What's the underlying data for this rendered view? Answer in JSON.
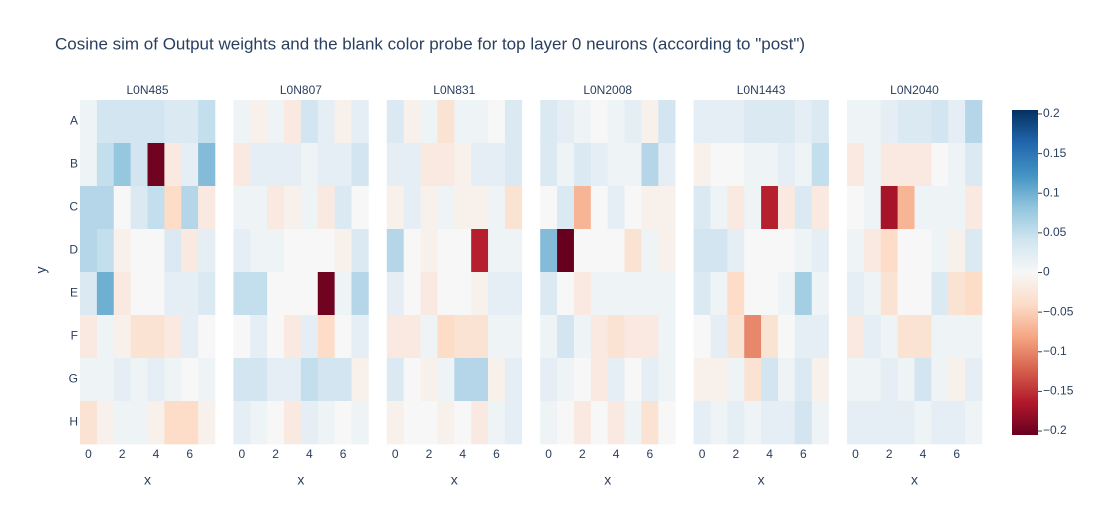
{
  "chart_data": {
    "type": "heatmap",
    "title": "Cosine sim of Output weights and the blank color probe for top layer 0 neurons (according to \"post\")",
    "x_label": "x",
    "y_label": "y",
    "xlim": [
      -0.5,
      7.5
    ],
    "xticks": [
      0,
      2,
      4,
      6
    ],
    "y_categories": [
      "A",
      "B",
      "C",
      "D",
      "E",
      "F",
      "G",
      "H"
    ],
    "zlim": [
      -0.205,
      0.205
    ],
    "colorscale": [
      "#67001f",
      "#b2182b",
      "#d6604d",
      "#f4a582",
      "#fddbc7",
      "#f7f7f7",
      "#d1e5f0",
      "#92c5de",
      "#4393c3",
      "#2166ac",
      "#053061"
    ],
    "colorbar_ticks": [
      0.2,
      0.15,
      0.1,
      0.05,
      0,
      {
        "value": -0.05,
        "label": "−0.05"
      },
      {
        "value": -0.1,
        "label": "−0.1"
      },
      {
        "value": -0.15,
        "label": "−0.15"
      },
      {
        "value": -0.2,
        "label": "−0.2"
      }
    ],
    "panels": [
      {
        "subtitle": "L0N485",
        "values": [
          [
            0.01,
            0.04,
            0.04,
            0.04,
            0.04,
            0.03,
            0.03,
            0.05
          ],
          [
            0.01,
            0.05,
            0.08,
            0.04,
            -0.2,
            -0.02,
            0.02,
            0.09
          ],
          [
            0.06,
            0.06,
            0.0,
            0.03,
            0.05,
            -0.04,
            0.06,
            -0.02
          ],
          [
            0.06,
            0.05,
            -0.01,
            0.0,
            0.0,
            0.03,
            -0.02,
            0.02
          ],
          [
            0.03,
            0.1,
            -0.02,
            0.0,
            0.0,
            0.02,
            0.02,
            0.03
          ],
          [
            -0.02,
            0.01,
            -0.01,
            -0.03,
            -0.03,
            -0.02,
            0.02,
            0.0
          ],
          [
            0.01,
            0.01,
            0.02,
            0.01,
            0.02,
            0.01,
            0.0,
            0.01
          ],
          [
            -0.03,
            -0.01,
            0.01,
            0.01,
            -0.01,
            -0.04,
            -0.04,
            -0.01
          ]
        ]
      },
      {
        "subtitle": "L0N807",
        "values": [
          [
            0.01,
            -0.01,
            0.01,
            -0.02,
            0.04,
            0.02,
            -0.01,
            0.02
          ],
          [
            -0.02,
            0.02,
            0.02,
            0.02,
            0.01,
            0.02,
            0.02,
            0.04
          ],
          [
            0.01,
            0.01,
            -0.02,
            -0.01,
            0.01,
            -0.02,
            0.03,
            0.0
          ],
          [
            0.02,
            0.01,
            0.01,
            0.0,
            0.0,
            0.0,
            -0.01,
            0.03
          ],
          [
            0.05,
            0.05,
            0.0,
            0.0,
            0.0,
            -0.2,
            0.01,
            0.06
          ],
          [
            0.0,
            0.02,
            0.0,
            -0.02,
            0.02,
            -0.04,
            0.0,
            0.02
          ],
          [
            0.04,
            0.04,
            0.02,
            0.02,
            0.05,
            0.04,
            0.04,
            -0.01
          ],
          [
            0.02,
            0.01,
            0.0,
            -0.02,
            0.02,
            0.01,
            0.0,
            0.01
          ]
        ]
      },
      {
        "subtitle": "L0N831",
        "values": [
          [
            0.03,
            -0.01,
            0.01,
            -0.03,
            0.01,
            0.01,
            0.0,
            0.03
          ],
          [
            0.02,
            0.02,
            -0.02,
            -0.02,
            -0.01,
            0.02,
            0.02,
            0.03
          ],
          [
            -0.01,
            0.02,
            -0.01,
            0.01,
            -0.01,
            -0.01,
            0.01,
            -0.03
          ],
          [
            0.06,
            0.0,
            -0.01,
            0.0,
            0.0,
            -0.16,
            0.01,
            0.01
          ],
          [
            0.02,
            0.0,
            -0.02,
            0.0,
            0.0,
            -0.01,
            0.02,
            0.02
          ],
          [
            -0.02,
            -0.02,
            0.01,
            -0.04,
            -0.03,
            -0.03,
            0.01,
            0.01
          ],
          [
            0.03,
            0.0,
            -0.01,
            0.01,
            0.06,
            0.06,
            -0.01,
            0.02
          ],
          [
            -0.01,
            0.0,
            0.0,
            -0.01,
            0.0,
            -0.02,
            0.01,
            0.02
          ]
        ]
      },
      {
        "subtitle": "L0N2008",
        "values": [
          [
            0.03,
            0.02,
            0.01,
            0.0,
            0.01,
            0.02,
            -0.01,
            0.04
          ],
          [
            0.03,
            0.01,
            0.03,
            0.02,
            0.01,
            0.01,
            0.06,
            0.02
          ],
          [
            0.0,
            0.03,
            -0.07,
            0.0,
            0.02,
            0.0,
            -0.01,
            -0.01
          ],
          [
            0.09,
            -0.21,
            0.0,
            0.0,
            0.0,
            -0.03,
            0.01,
            -0.01
          ],
          [
            0.03,
            0.0,
            -0.02,
            0.01,
            0.01,
            0.01,
            0.01,
            0.01
          ],
          [
            0.01,
            0.04,
            0.01,
            -0.02,
            -0.03,
            -0.02,
            -0.02,
            0.01
          ],
          [
            0.02,
            0.01,
            0.0,
            -0.02,
            0.02,
            0.0,
            0.02,
            0.01
          ],
          [
            0.01,
            0.0,
            -0.02,
            0.0,
            -0.02,
            0.01,
            -0.03,
            0.0
          ]
        ]
      },
      {
        "subtitle": "L0N1443",
        "values": [
          [
            0.02,
            0.02,
            0.02,
            0.03,
            0.03,
            0.03,
            0.02,
            0.03
          ],
          [
            -0.01,
            0.0,
            0.0,
            0.01,
            0.01,
            0.02,
            0.01,
            0.05
          ],
          [
            0.03,
            0.01,
            -0.02,
            0.01,
            -0.16,
            -0.02,
            0.03,
            -0.02
          ],
          [
            0.04,
            0.04,
            0.02,
            0.0,
            0.0,
            0.0,
            0.01,
            0.02
          ],
          [
            0.03,
            0.01,
            -0.04,
            0.0,
            0.0,
            0.01,
            0.07,
            0.01
          ],
          [
            0.0,
            0.02,
            -0.03,
            -0.1,
            -0.03,
            0.0,
            0.02,
            0.02
          ],
          [
            -0.01,
            -0.01,
            0.01,
            -0.03,
            0.04,
            0.01,
            0.03,
            -0.01
          ],
          [
            0.02,
            0.01,
            0.02,
            0.01,
            0.02,
            0.02,
            0.04,
            0.01
          ]
        ]
      },
      {
        "subtitle": "L0N2040",
        "values": [
          [
            0.01,
            0.01,
            0.02,
            0.03,
            0.03,
            0.04,
            0.02,
            0.06
          ],
          [
            -0.02,
            0.01,
            -0.02,
            -0.02,
            -0.02,
            0.0,
            0.01,
            0.03
          ],
          [
            0.0,
            0.01,
            -0.17,
            -0.07,
            0.01,
            0.01,
            0.01,
            -0.02
          ],
          [
            0.01,
            -0.02,
            -0.04,
            0.0,
            0.0,
            0.01,
            -0.01,
            0.03
          ],
          [
            0.02,
            0.01,
            -0.03,
            0.0,
            0.0,
            0.03,
            -0.03,
            -0.04
          ],
          [
            -0.02,
            0.02,
            0.01,
            -0.03,
            -0.03,
            0.01,
            0.01,
            0.01
          ],
          [
            0.01,
            0.01,
            0.02,
            0.01,
            0.04,
            0.01,
            -0.01,
            0.02
          ],
          [
            0.02,
            0.02,
            0.02,
            0.02,
            0.01,
            0.02,
            0.02,
            0.01
          ]
        ]
      }
    ]
  }
}
